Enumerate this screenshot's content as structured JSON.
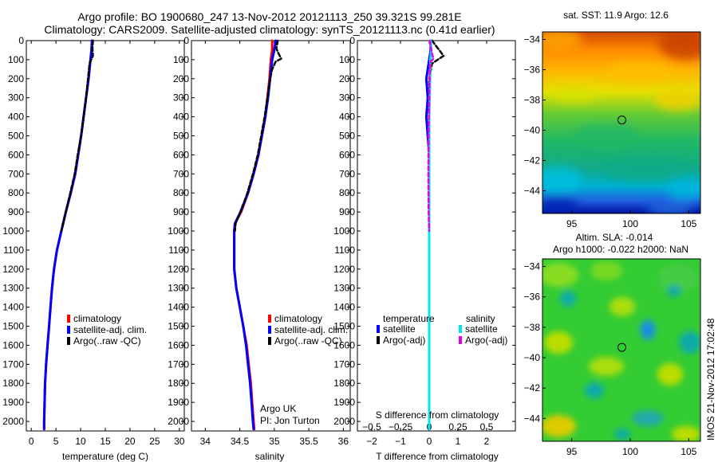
{
  "header": {
    "title_line1": "Argo profile: BO 1900680_247 13-Nov-2012 20121113_250 39.321S 99.281E",
    "title_line2": "Climatology: CARS2009. Satellite-adjusted climatology: synTS_20121113.nc (0.41d earlier)"
  },
  "side_stamp": "IMOS 21-Nov-2012 17:02:48",
  "colors": {
    "climatology": "#ff0000",
    "satellite": "#0000ff",
    "argo": "#000000",
    "salinity_satellite": "#00e5ee",
    "salinity_argo": "#e600e6"
  },
  "depth_axis": {
    "ylim": [
      0,
      2050
    ],
    "ticks": [
      0,
      100,
      200,
      300,
      400,
      500,
      600,
      700,
      800,
      900,
      1000,
      1100,
      1200,
      1300,
      1400,
      1500,
      1600,
      1700,
      1800,
      1900,
      2000
    ]
  },
  "chart_data": [
    {
      "type": "line",
      "id": "temperature",
      "xlabel": "temperature (deg C)",
      "xlim": [
        -1,
        31
      ],
      "xticks": [
        0,
        5,
        10,
        15,
        20,
        25,
        30
      ],
      "ylim": [
        0,
        2050
      ],
      "y_reversed": true,
      "legend": {
        "placement": "bottom-right",
        "entries": [
          "climatology",
          "satellite-adj. clim.",
          "Argo(..raw -QC)"
        ]
      },
      "series": [
        {
          "name": "climatology",
          "color": "#ff0000",
          "style": "solid",
          "points": [
            [
              12.3,
              0
            ],
            [
              12.2,
              50
            ],
            [
              12.0,
              100
            ],
            [
              11.6,
              200
            ],
            [
              11.1,
              300
            ],
            [
              10.6,
              400
            ],
            [
              10.1,
              500
            ],
            [
              9.5,
              600
            ],
            [
              8.9,
              700
            ],
            [
              8.0,
              800
            ],
            [
              7.0,
              900
            ],
            [
              6.1,
              1000
            ],
            [
              5.2,
              1100
            ],
            [
              4.6,
              1200
            ],
            [
              4.2,
              1300
            ],
            [
              3.9,
              1400
            ],
            [
              3.6,
              1500
            ],
            [
              3.3,
              1600
            ],
            [
              3.0,
              1700
            ],
            [
              2.8,
              1800
            ],
            [
              2.7,
              1900
            ],
            [
              2.6,
              2000
            ],
            [
              2.6,
              2040
            ]
          ]
        },
        {
          "name": "satellite-adj. clim.",
          "color": "#0000ff",
          "style": "solid",
          "points": [
            [
              12.3,
              0
            ],
            [
              12.2,
              50
            ],
            [
              12.0,
              100
            ],
            [
              11.6,
              200
            ],
            [
              11.1,
              300
            ],
            [
              10.6,
              400
            ],
            [
              10.1,
              500
            ],
            [
              9.5,
              600
            ],
            [
              8.9,
              700
            ],
            [
              8.0,
              800
            ],
            [
              7.0,
              900
            ],
            [
              6.1,
              1000
            ],
            [
              5.2,
              1100
            ],
            [
              4.6,
              1200
            ],
            [
              4.2,
              1300
            ],
            [
              3.9,
              1400
            ],
            [
              3.6,
              1500
            ],
            [
              3.3,
              1600
            ],
            [
              3.0,
              1700
            ],
            [
              2.8,
              1800
            ],
            [
              2.7,
              1900
            ],
            [
              2.6,
              2000
            ],
            [
              2.6,
              2040
            ]
          ]
        },
        {
          "name": "Argo(..raw -QC)",
          "color": "#000000",
          "style": "dashed",
          "points": [
            [
              12.5,
              0
            ],
            [
              12.4,
              40
            ],
            [
              12.5,
              80
            ],
            [
              11.8,
              120
            ],
            [
              11.5,
              200
            ],
            [
              11.1,
              300
            ],
            [
              10.6,
              400
            ],
            [
              10.1,
              500
            ],
            [
              9.4,
              600
            ],
            [
              8.8,
              700
            ],
            [
              7.9,
              800
            ],
            [
              7.0,
              900
            ],
            [
              6.1,
              1000
            ]
          ]
        }
      ]
    },
    {
      "type": "line",
      "id": "salinity",
      "xlabel": "salinity",
      "xlim": [
        33.8,
        36.1
      ],
      "xticks": [
        34,
        34.5,
        35,
        35.5,
        36
      ],
      "ylim": [
        0,
        2050
      ],
      "y_reversed": true,
      "legend": {
        "placement": "bottom-right",
        "entries": [
          "climatology",
          "satellite-adj. clim.",
          "Argo(..raw -QC)"
        ]
      },
      "annotation_lines": [
        "Argo UK",
        "PI: Jon Turton"
      ],
      "series": [
        {
          "name": "climatology",
          "color": "#ff0000",
          "style": "solid",
          "points": [
            [
              34.97,
              0
            ],
            [
              34.97,
              50
            ],
            [
              34.95,
              100
            ],
            [
              34.93,
              200
            ],
            [
              34.9,
              300
            ],
            [
              34.87,
              400
            ],
            [
              34.82,
              500
            ],
            [
              34.77,
              600
            ],
            [
              34.7,
              700
            ],
            [
              34.62,
              800
            ],
            [
              34.52,
              900
            ],
            [
              34.43,
              960
            ],
            [
              34.42,
              1000
            ],
            [
              34.42,
              1100
            ],
            [
              34.42,
              1200
            ],
            [
              34.45,
              1300
            ],
            [
              34.5,
              1400
            ],
            [
              34.55,
              1500
            ],
            [
              34.6,
              1600
            ],
            [
              34.63,
              1700
            ],
            [
              34.66,
              1800
            ],
            [
              34.68,
              1900
            ],
            [
              34.7,
              2000
            ],
            [
              34.71,
              2040
            ]
          ]
        },
        {
          "name": "satellite-adj. clim.",
          "color": "#0000ff",
          "style": "solid",
          "points": [
            [
              35.02,
              0
            ],
            [
              35.0,
              50
            ],
            [
              34.97,
              100
            ],
            [
              34.94,
              200
            ],
            [
              34.91,
              300
            ],
            [
              34.87,
              400
            ],
            [
              34.82,
              500
            ],
            [
              34.77,
              600
            ],
            [
              34.7,
              700
            ],
            [
              34.62,
              800
            ],
            [
              34.51,
              900
            ],
            [
              34.43,
              960
            ],
            [
              34.42,
              1000
            ],
            [
              34.42,
              1100
            ],
            [
              34.42,
              1200
            ],
            [
              34.45,
              1300
            ],
            [
              34.5,
              1400
            ],
            [
              34.55,
              1500
            ],
            [
              34.59,
              1600
            ],
            [
              34.62,
              1700
            ],
            [
              34.65,
              1800
            ],
            [
              34.67,
              1900
            ],
            [
              34.69,
              2000
            ],
            [
              34.7,
              2040
            ]
          ]
        },
        {
          "name": "Argo(..raw -QC)",
          "color": "#000000",
          "style": "dashed",
          "points": [
            [
              35.05,
              0
            ],
            [
              35.03,
              40
            ],
            [
              35.05,
              60
            ],
            [
              35.1,
              95
            ],
            [
              35.02,
              110
            ],
            [
              34.97,
              150
            ],
            [
              34.94,
              200
            ],
            [
              34.9,
              300
            ],
            [
              34.86,
              400
            ],
            [
              34.81,
              500
            ],
            [
              34.76,
              600
            ],
            [
              34.69,
              700
            ],
            [
              34.61,
              800
            ],
            [
              34.51,
              900
            ],
            [
              34.44,
              960
            ],
            [
              34.43,
              1000
            ]
          ]
        }
      ]
    },
    {
      "type": "line",
      "id": "difference",
      "xlabel": "T difference from climatology",
      "xlabel_top": "S difference from climatology",
      "xlim": [
        -2.5,
        3.0
      ],
      "xticks": [
        -2,
        -1,
        0,
        1,
        2
      ],
      "xticks_top": [
        -0.5,
        -0.25,
        0,
        0.25,
        0.5
      ],
      "ylim": [
        0,
        2050
      ],
      "y_reversed": true,
      "legend": {
        "placement": "bottom",
        "temperature_heading": "temperature",
        "salinity_heading": "salinity",
        "entries": [
          "satellite",
          "Argo(-adj)",
          "satellite",
          "Argo(-adj)"
        ]
      },
      "series": [
        {
          "name": "temperature satellite",
          "color": "#0000ff",
          "style": "solid",
          "points": [
            [
              0.05,
              0
            ],
            [
              0.05,
              50
            ],
            [
              0.0,
              100
            ],
            [
              -0.1,
              200
            ],
            [
              -0.05,
              300
            ],
            [
              -0.1,
              400
            ],
            [
              0.0,
              600
            ],
            [
              0.0,
              800
            ],
            [
              0.0,
              1000
            ],
            [
              0.0,
              1200
            ],
            [
              0.0,
              1600
            ],
            [
              0.0,
              2040
            ]
          ]
        },
        {
          "name": "temperature Argo(-adj)",
          "color": "#000000",
          "style": "dashed",
          "points": [
            [
              0.1,
              0
            ],
            [
              0.3,
              40
            ],
            [
              0.5,
              80
            ],
            [
              0.1,
              120
            ],
            [
              0.0,
              200
            ],
            [
              0.0,
              400
            ],
            [
              0.0,
              600
            ],
            [
              0.0,
              800
            ],
            [
              0.0,
              1000
            ]
          ]
        },
        {
          "name": "salinity satellite",
          "color": "#00e5ee",
          "style": "solid",
          "points": [
            [
              0.05,
              0
            ],
            [
              0.07,
              50
            ],
            [
              0.04,
              100
            ],
            [
              0.03,
              200
            ],
            [
              0.0,
              400
            ],
            [
              0.0,
              600
            ],
            [
              0.0,
              800
            ],
            [
              0.0,
              1000
            ],
            [
              0.0,
              1200
            ],
            [
              0.0,
              1600
            ],
            [
              0.0,
              2040
            ]
          ]
        },
        {
          "name": "salinity Argo(-adj)",
          "color": "#e600e6",
          "style": "dashed",
          "points": [
            [
              0.02,
              0
            ],
            [
              0.06,
              40
            ],
            [
              0.1,
              70
            ],
            [
              0.15,
              95
            ],
            [
              0.05,
              110
            ],
            [
              0.02,
              150
            ],
            [
              0.0,
              300
            ],
            [
              -0.02,
              500
            ],
            [
              -0.03,
              700
            ],
            [
              -0.02,
              900
            ],
            [
              0.0,
              1000
            ]
          ]
        }
      ]
    },
    {
      "type": "heatmap",
      "id": "sst-map",
      "title": "sat. SST: 11.9 Argo: 12.6",
      "xlim": [
        92.5,
        106
      ],
      "ylim": [
        -45.5,
        -33.5
      ],
      "xticks": [
        95,
        100,
        105
      ],
      "yticks": [
        -34,
        -36,
        -38,
        -40,
        -42,
        -44
      ],
      "marker": {
        "lon": 99.281,
        "lat": -39.321
      },
      "colorscale": "jet"
    },
    {
      "type": "heatmap",
      "id": "sla-map",
      "title": "Altim. SLA: -0.014",
      "subtitle": "Argo h1000: -0.022 h2000: NaN",
      "xlim": [
        92.5,
        106
      ],
      "ylim": [
        -45.5,
        -33.5
      ],
      "xticks": [
        95,
        100,
        105
      ],
      "yticks": [
        -34,
        -36,
        -38,
        -40,
        -42,
        -44
      ],
      "marker": {
        "lon": 99.281,
        "lat": -39.321
      },
      "colorscale": "jet"
    }
  ]
}
